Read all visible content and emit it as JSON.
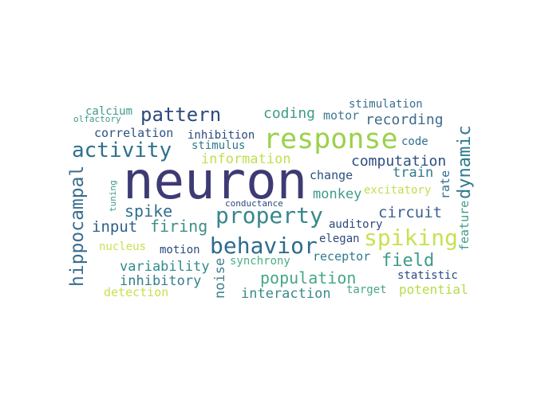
{
  "words": [
    {
      "text": "neuron",
      "color": "#3d3a74"
    },
    {
      "text": "response",
      "color": "#9ad24b"
    },
    {
      "text": "activity",
      "color": "#2f6f8e"
    },
    {
      "text": "pattern",
      "color": "#2b4a7d"
    },
    {
      "text": "property",
      "color": "#37878b"
    },
    {
      "text": "behavior",
      "color": "#2e6b8e"
    },
    {
      "text": "spiking",
      "color": "#c7e252"
    },
    {
      "text": "hippocampal",
      "color": "#3b6e8f"
    },
    {
      "text": "dynamic",
      "color": "#2f7a8d"
    },
    {
      "text": "field",
      "color": "#3f9b89"
    },
    {
      "text": "population",
      "color": "#46a786"
    },
    {
      "text": "spike",
      "color": "#2f6f8e"
    },
    {
      "text": "firing",
      "color": "#3e8f8a"
    },
    {
      "text": "input",
      "color": "#2e5d8c"
    },
    {
      "text": "circuit",
      "color": "#3b5f8f"
    },
    {
      "text": "coding",
      "color": "#3f9b89"
    },
    {
      "text": "recording",
      "color": "#3f6a8c"
    },
    {
      "text": "computation",
      "color": "#2f4f7f"
    },
    {
      "text": "information",
      "color": "#c0df4c"
    },
    {
      "text": "interaction",
      "color": "#3a8a8b"
    },
    {
      "text": "variability",
      "color": "#2f8c8a"
    },
    {
      "text": "inhibitory",
      "color": "#357f8c"
    },
    {
      "text": "train",
      "color": "#2f7a8d"
    },
    {
      "text": "monkey",
      "color": "#3f9b89"
    },
    {
      "text": "noise",
      "color": "#3f7f8e"
    },
    {
      "text": "potential",
      "color": "#b6dc47"
    },
    {
      "text": "correlation",
      "color": "#2b5382"
    },
    {
      "text": "motor",
      "color": "#3f7a8e"
    },
    {
      "text": "feature",
      "color": "#3f9b89"
    },
    {
      "text": "rate",
      "color": "#2f6f8e"
    },
    {
      "text": "change",
      "color": "#2a4f80"
    },
    {
      "text": "detection",
      "color": "#c7e252"
    },
    {
      "text": "receptor",
      "color": "#2f7a8d"
    },
    {
      "text": "calcium",
      "color": "#3f9b89"
    },
    {
      "text": "stimulation",
      "color": "#3a6f8e"
    },
    {
      "text": "inhibition",
      "color": "#2b4a7d"
    },
    {
      "text": "stimulus",
      "color": "#2f7a8d"
    },
    {
      "text": "auditory",
      "color": "#2b4a7d"
    },
    {
      "text": "synchrony",
      "color": "#4ab084"
    },
    {
      "text": "elegan",
      "color": "#2b4a7d"
    },
    {
      "text": "nucleus",
      "color": "#c7e252"
    },
    {
      "text": "motion",
      "color": "#2b4a7d"
    },
    {
      "text": "excitatory",
      "color": "#c0df4c"
    },
    {
      "text": "code",
      "color": "#2f6f8e"
    },
    {
      "text": "target",
      "color": "#46a786"
    },
    {
      "text": "statistic",
      "color": "#2b4a7d"
    },
    {
      "text": "tuning",
      "color": "#3f9b89"
    },
    {
      "text": "olfactory",
      "color": "#3f9b89"
    },
    {
      "text": "conductance",
      "color": "#2b4a7d"
    }
  ]
}
